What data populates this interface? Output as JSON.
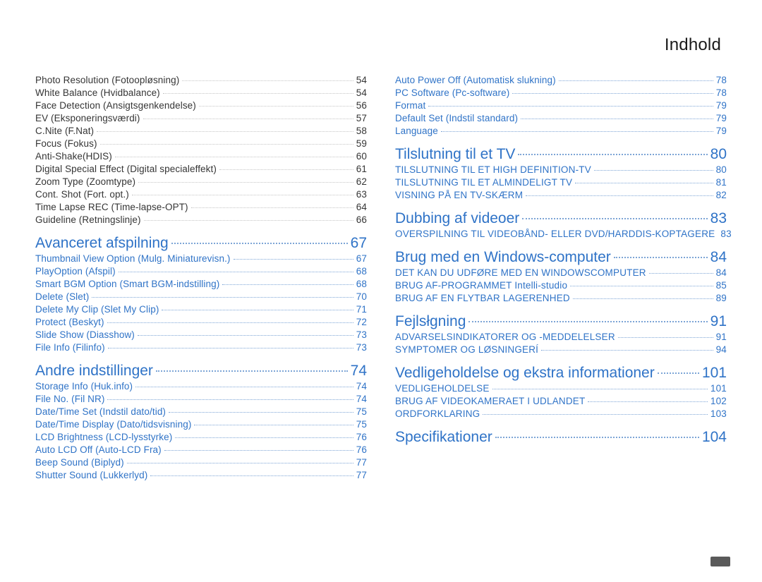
{
  "heading": "Indhold",
  "colors": {
    "section": "#2f73c7",
    "sub_caps": "#2f73c7",
    "sub_item": "#2f73c7",
    "plain": "#353535",
    "dot_light": "#c5c5c5",
    "dot_blue": "#7da5d6",
    "bg": "#ffffff"
  },
  "columns": [
    {
      "entries": [
        {
          "level": "item",
          "color": "plain",
          "label": "Photo Resolution (Fotoopløsning)",
          "page": "54"
        },
        {
          "level": "item",
          "color": "plain",
          "label": "White Balance (Hvidbalance)",
          "page": "54"
        },
        {
          "level": "item",
          "color": "plain",
          "label": "Face Detection (Ansigtsgenkendelse)",
          "page": "56"
        },
        {
          "level": "item",
          "color": "plain",
          "label": "EV (Eksponeringsværdi)",
          "page": "57"
        },
        {
          "level": "item",
          "color": "plain",
          "label": "C.Nite (F.Nat)",
          "page": "58"
        },
        {
          "level": "item",
          "color": "plain",
          "label": "Focus (Fokus)",
          "page": "59"
        },
        {
          "level": "item",
          "color": "plain",
          "label": "Anti-Shake(HDIS)",
          "page": "60"
        },
        {
          "level": "item",
          "color": "plain",
          "label": "Digital Special Effect (Digital specialeffekt)",
          "page": "61"
        },
        {
          "level": "item",
          "color": "plain",
          "label": "Zoom Type (Zoomtype)",
          "page": "62"
        },
        {
          "level": "item",
          "color": "plain",
          "label": "Cont. Shot (Fort. opt.)",
          "page": "63"
        },
        {
          "level": "item",
          "color": "plain",
          "label": "Time Lapse REC (Time-lapse-OPT)",
          "page": "64"
        },
        {
          "level": "item",
          "color": "plain",
          "label": "Guideline (Retningslinje)",
          "page": "66"
        },
        {
          "level": "section",
          "label": "Avanceret afspilning",
          "page": "67"
        },
        {
          "level": "item",
          "color": "sub_item",
          "label": "Thumbnail View Option (Mulg. Miniaturevisn.)",
          "page": "67"
        },
        {
          "level": "item",
          "color": "sub_item",
          "label": "PlayOption (Afspil)",
          "page": "68"
        },
        {
          "level": "item",
          "color": "sub_item",
          "label": "Smart BGM Option (Smart BGM-indstilling)",
          "page": "68"
        },
        {
          "level": "item",
          "color": "sub_item",
          "label": "Delete (Slet)",
          "page": "70"
        },
        {
          "level": "item",
          "color": "sub_item",
          "label": "Delete My Clip (Slet My Clip)",
          "page": "71"
        },
        {
          "level": "item",
          "color": "sub_item",
          "label": "Protect (Beskyt)",
          "page": "72"
        },
        {
          "level": "item",
          "color": "sub_item",
          "label": "Slide Show (Diasshow)",
          "page": "73"
        },
        {
          "level": "item",
          "color": "sub_item",
          "label": "File Info (Filinfo)",
          "page": "73"
        },
        {
          "level": "section",
          "label": "Andre indstillinger",
          "page": "74"
        },
        {
          "level": "item",
          "color": "sub_item",
          "label": "Storage Info (Huk.info)",
          "page": "74"
        },
        {
          "level": "item",
          "color": "sub_item",
          "label": "File No. (Fil NR)",
          "page": "74"
        },
        {
          "level": "item",
          "color": "sub_item",
          "label": "Date/Time Set (Indstil dato/tid)",
          "page": "75"
        },
        {
          "level": "item",
          "color": "sub_item",
          "label": "Date/Time Display (Dato/tidsvisning)",
          "page": "75"
        },
        {
          "level": "item",
          "color": "sub_item",
          "label": "LCD Brightness (LCD-lysstyrke)",
          "page": "76"
        },
        {
          "level": "item",
          "color": "sub_item",
          "label": "Auto LCD Off (Auto-LCD Fra)",
          "page": "76"
        },
        {
          "level": "item",
          "color": "sub_item",
          "label": "Beep Sound (Biplyd)",
          "page": "77"
        },
        {
          "level": "item",
          "color": "sub_item",
          "label": "Shutter Sound (Lukkerlyd)",
          "page": "77"
        }
      ]
    },
    {
      "entries": [
        {
          "level": "item",
          "color": "sub_item",
          "label": "Auto Power Off (Automatisk slukning)",
          "page": "78"
        },
        {
          "level": "item",
          "color": "sub_item",
          "label": "PC Software (Pc-software)",
          "page": "78"
        },
        {
          "level": "item",
          "color": "sub_item",
          "label": "Format",
          "page": "79"
        },
        {
          "level": "item",
          "color": "sub_item",
          "label": "Default Set (Indstil standard)",
          "page": "79"
        },
        {
          "level": "item",
          "color": "sub_item",
          "label": "Language",
          "page": "79"
        },
        {
          "level": "section",
          "label": "Tilslutning til et TV",
          "page": "80"
        },
        {
          "level": "sub",
          "label": "TILSLUTNING TIL ET HIGH DEFINITION-TV",
          "page": "80"
        },
        {
          "level": "sub",
          "label": "TILSLUTNING TIL ET ALMINDELIGT TV",
          "page": "81"
        },
        {
          "level": "sub",
          "label": "VISNING PÅ EN TV-SKÆRM",
          "page": "82"
        },
        {
          "level": "section",
          "label": "Dubbing af videoer",
          "page": "83"
        },
        {
          "level": "sub",
          "label": "OVERSPILNING TIL VIDEOBÅND- ELLER DVD/HARDDIS-KOPTAGERE",
          "page": "83"
        },
        {
          "level": "section",
          "label": "Brug med en Windows-computer",
          "page": "84"
        },
        {
          "level": "sub",
          "label": "DET KAN DU UDFØRE MED EN WINDOWSCOMPUTER",
          "page": "84"
        },
        {
          "level": "sub",
          "label": "BRUG AF-PROGRAMMET Intelli-studio",
          "page": "85"
        },
        {
          "level": "sub",
          "label": "BRUG AF EN FLYTBAR LAGERENHED",
          "page": "89"
        },
        {
          "level": "section",
          "label": "Fejlsłgning",
          "page": "91"
        },
        {
          "level": "sub",
          "label": "ADVARSELSINDIKATORER OG -MEDDELELSER",
          "page": "91"
        },
        {
          "level": "sub",
          "label": "SYMPTOMER OG LØSNINGERÍ",
          "page": "94"
        },
        {
          "level": "section",
          "label": "Vedligeholdelse og ekstra informationer",
          "page": "101"
        },
        {
          "level": "sub",
          "label": "VEDLIGEHOLDELSE",
          "page": "101"
        },
        {
          "level": "sub",
          "label": "BRUG AF VIDEOKAMERAET I UDLANDET",
          "page": "102"
        },
        {
          "level": "sub",
          "label": "ORDFORKLARING",
          "page": "103"
        },
        {
          "level": "section",
          "label": "Specifikationer",
          "page": "104"
        }
      ]
    }
  ]
}
